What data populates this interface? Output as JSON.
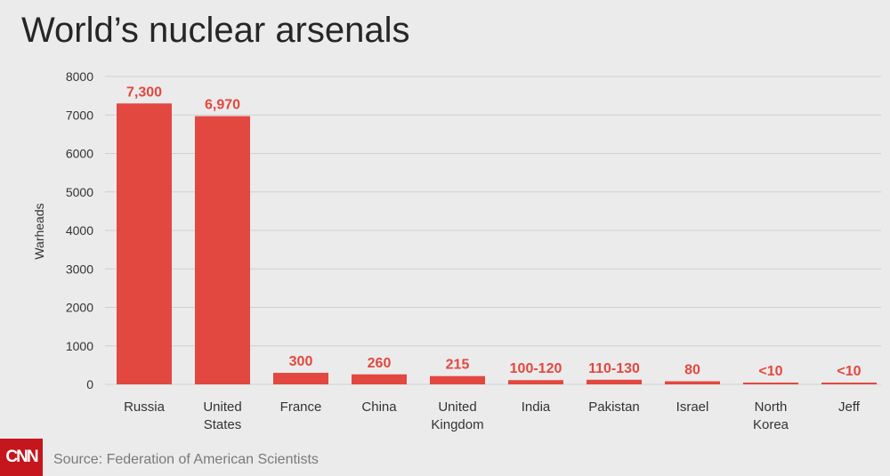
{
  "chart_data": {
    "type": "bar",
    "title": "World’s nuclear arsenals",
    "ylabel": "Warheads",
    "xlabel": "",
    "ylim": [
      0,
      8000
    ],
    "yticks": [
      0,
      1000,
      2000,
      3000,
      4000,
      5000,
      6000,
      7000,
      8000
    ],
    "grid": true,
    "bar_color": "#e2483f",
    "categories": [
      [
        "Russia"
      ],
      [
        "United",
        "States"
      ],
      [
        "France"
      ],
      [
        "China"
      ],
      [
        "United",
        "Kingdom"
      ],
      [
        "India"
      ],
      [
        "Pakistan"
      ],
      [
        "Israel"
      ],
      [
        "North",
        "Korea"
      ],
      [
        "Jeff"
      ]
    ],
    "values": [
      7300,
      6970,
      300,
      260,
      215,
      110,
      120,
      80,
      5,
      5
    ],
    "value_labels": [
      "7,300",
      "6,970",
      "300",
      "260",
      "215",
      "100-120",
      "110-130",
      "80",
      "<10",
      "<10"
    ]
  },
  "footer": {
    "logo": "CNN",
    "source": "Source: Federation of American Scientists"
  }
}
